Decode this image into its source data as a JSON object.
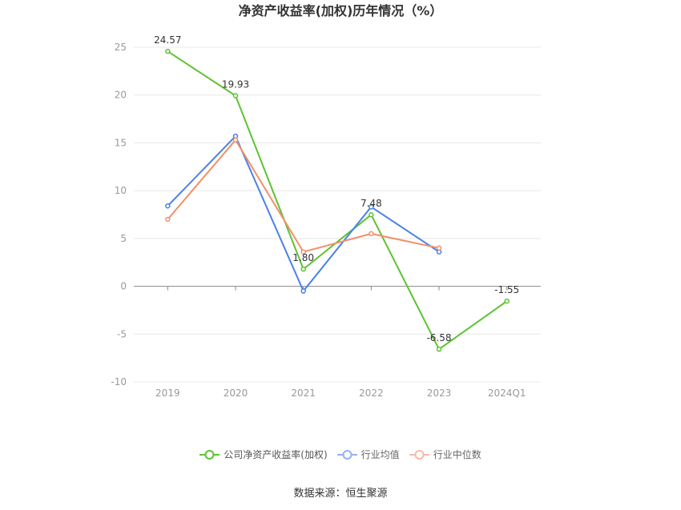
{
  "chart_data": {
    "type": "line",
    "title": "净资产收益率(加权)历年情况（%）",
    "categories": [
      "2019",
      "2020",
      "2021",
      "2022",
      "2023",
      "2024Q1"
    ],
    "series": [
      {
        "name": "公司净资产收益率(加权)",
        "color": "#5ec232",
        "values": [
          24.57,
          19.93,
          1.8,
          7.48,
          -6.58,
          -1.55
        ],
        "labels": [
          "24.57",
          "19.93",
          "1.80",
          "7.48",
          "-6.58",
          "-1.55"
        ]
      },
      {
        "name": "行业均值",
        "color": "#4a80e8",
        "values": [
          8.4,
          15.7,
          -0.5,
          8.3,
          3.6,
          null
        ]
      },
      {
        "name": "行业中位数",
        "color": "#f28f68",
        "values": [
          7.0,
          15.3,
          3.6,
          5.5,
          4.0,
          null
        ]
      }
    ],
    "ylim": [
      -10,
      25
    ],
    "yticks": [
      25,
      20,
      15,
      10,
      5,
      0,
      -5,
      -10
    ],
    "grid": true,
    "legend_position": "bottom"
  },
  "source": "数据来源：恒生聚源"
}
